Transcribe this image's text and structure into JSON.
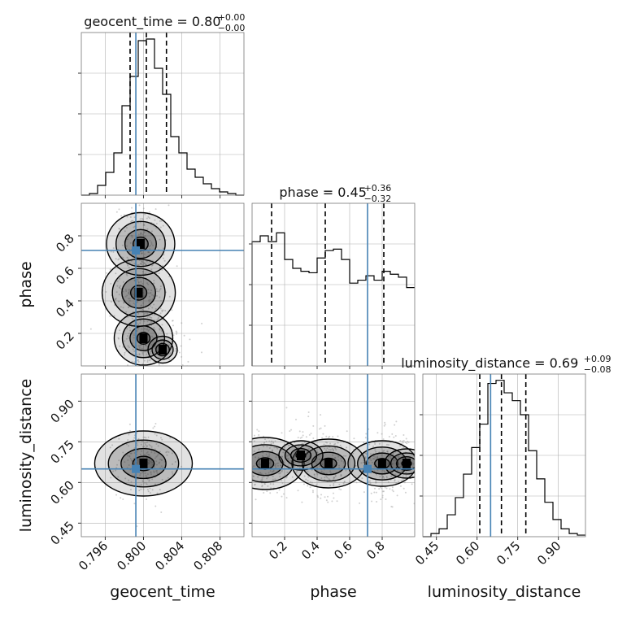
{
  "chart_data": {
    "type": "corner",
    "parameters": [
      "geocent_time",
      "phase",
      "luminosity_distance"
    ],
    "truths": [
      0.7992,
      0.71,
      0.65
    ],
    "truth_color": "#4682b4",
    "colors": {
      "hist": "#000000",
      "grid": "#b0b0b0",
      "quantile": "#000000"
    },
    "grid": true,
    "panels": [
      {
        "id": "hist-geocent_time",
        "row": 0,
        "col": 0,
        "kind": "hist1d",
        "xlim": [
          0.7935,
          0.8105
        ],
        "title": {
          "main": "geocent_time = 0.80",
          "sup": "+0.00",
          "sub": "−0.00"
        },
        "edges": [
          0.7935,
          0.79435,
          0.7952,
          0.79605,
          0.7969,
          0.79775,
          0.7986,
          0.79945,
          0.8003,
          0.80115,
          0.802,
          0.80285,
          0.8037,
          0.80455,
          0.8054,
          0.80625,
          0.8071,
          0.80795,
          0.8088,
          0.80965,
          0.8105
        ],
        "counts": [
          0,
          1,
          6,
          14,
          26,
          55,
          73,
          95,
          96,
          78,
          62,
          36,
          26,
          16,
          11,
          7,
          4,
          2,
          1,
          0
        ],
        "ymax": 100,
        "quantiles": [
          0.7986,
          0.8003,
          0.8024
        ],
        "truth": 0.7992
      },
      {
        "id": "hist-phase",
        "row": 1,
        "col": 1,
        "kind": "hist1d",
        "xlim": [
          0.0,
          1.0
        ],
        "title": {
          "main": "phase = 0.45",
          "sup": "+0.36",
          "sub": "−0.32"
        },
        "edges": [
          0.0,
          0.05,
          0.1,
          0.15,
          0.2,
          0.25,
          0.3,
          0.35,
          0.4,
          0.45,
          0.5,
          0.55,
          0.6,
          0.65,
          0.7,
          0.75,
          0.8,
          0.85,
          0.9,
          0.95,
          1.0
        ],
        "counts": [
          84,
          88,
          84,
          90,
          72,
          66,
          64,
          63,
          73,
          78,
          79,
          72,
          56,
          58,
          61,
          58,
          64,
          62,
          60,
          53
        ],
        "ymax": 110,
        "quantiles": [
          0.12,
          0.45,
          0.81
        ],
        "truth": 0.71
      },
      {
        "id": "hist-luminosity_distance",
        "row": 2,
        "col": 2,
        "kind": "hist1d",
        "xlim": [
          0.4,
          1.0
        ],
        "title": {
          "main": "luminosity_distance = 0.69",
          "sup": "+0.09",
          "sub": "−0.08"
        },
        "edges": [
          0.4,
          0.43,
          0.46,
          0.49,
          0.52,
          0.55,
          0.58,
          0.61,
          0.64,
          0.67,
          0.7,
          0.73,
          0.76,
          0.79,
          0.82,
          0.85,
          0.88,
          0.91,
          0.94,
          0.97,
          1.0
        ],
        "counts": [
          0,
          2,
          5,
          14,
          25,
          40,
          57,
          72,
          98,
          100,
          92,
          87,
          78,
          55,
          37,
          22,
          11,
          5,
          2,
          1
        ],
        "ymax": 104,
        "quantiles": [
          0.61,
          0.69,
          0.78
        ],
        "truth": 0.65
      },
      {
        "id": "contour-phase-vs-geocent_time",
        "row": 1,
        "col": 0,
        "kind": "hist2d",
        "xlim": [
          0.7935,
          0.8105
        ],
        "ylim": [
          0.0,
          1.0
        ],
        "density_peaks": [
          {
            "x": 0.8,
            "y": 0.17,
            "w": 0.6
          },
          {
            "x": 0.7995,
            "y": 0.45,
            "w": 0.75
          },
          {
            "x": 0.7997,
            "y": 0.75,
            "w": 0.7
          },
          {
            "x": 0.802,
            "y": 0.1,
            "w": 0.3
          }
        ],
        "truth_x": 0.7992,
        "truth_y": 0.71
      },
      {
        "id": "contour-luminosity_distance-vs-geocent_time",
        "row": 2,
        "col": 0,
        "kind": "hist2d",
        "xlim": [
          0.7935,
          0.8105
        ],
        "ylim": [
          0.4,
          1.0
        ],
        "density_peaks": [
          {
            "x": 0.8,
            "y": 0.67,
            "w": 1.0
          }
        ],
        "truth_x": 0.7992,
        "truth_y": 0.65
      },
      {
        "id": "contour-luminosity_distance-vs-phase",
        "row": 2,
        "col": 1,
        "kind": "hist2d",
        "xlim": [
          0.0,
          1.0
        ],
        "ylim": [
          0.4,
          1.0
        ],
        "density_peaks": [
          {
            "x": 0.08,
            "y": 0.67,
            "w": 0.8
          },
          {
            "x": 0.47,
            "y": 0.67,
            "w": 0.75
          },
          {
            "x": 0.8,
            "y": 0.67,
            "w": 0.7
          },
          {
            "x": 0.3,
            "y": 0.7,
            "w": 0.45
          },
          {
            "x": 0.95,
            "y": 0.67,
            "w": 0.45
          }
        ],
        "truth_x": 0.71,
        "truth_y": 0.65
      }
    ],
    "axes": {
      "bottom": [
        {
          "col": 0,
          "label": "geocent_time",
          "ticks": [
            0.796,
            0.8,
            0.804,
            0.808
          ],
          "tick_labels": [
            "0.796",
            "0.800",
            "0.804",
            "0.808"
          ]
        },
        {
          "col": 1,
          "label": "phase",
          "ticks": [
            0.2,
            0.4,
            0.6,
            0.8
          ],
          "tick_labels": [
            "0.2",
            "0.4",
            "0.6",
            "0.8"
          ]
        },
        {
          "col": 2,
          "label": "luminosity_distance",
          "ticks": [
            0.45,
            0.6,
            0.75,
            0.9
          ],
          "tick_labels": [
            "0.45",
            "0.60",
            "0.75",
            "0.90"
          ]
        }
      ],
      "left": [
        {
          "row": 1,
          "label": "phase",
          "ticks": [
            0.2,
            0.4,
            0.6,
            0.8
          ],
          "tick_labels": [
            "0.2",
            "0.4",
            "0.6",
            "0.8"
          ]
        },
        {
          "row": 2,
          "label": "luminosity_distance",
          "ticks": [
            0.45,
            0.6,
            0.75,
            0.9
          ],
          "tick_labels": [
            "0.45",
            "0.60",
            "0.75",
            "0.90"
          ]
        }
      ]
    }
  }
}
